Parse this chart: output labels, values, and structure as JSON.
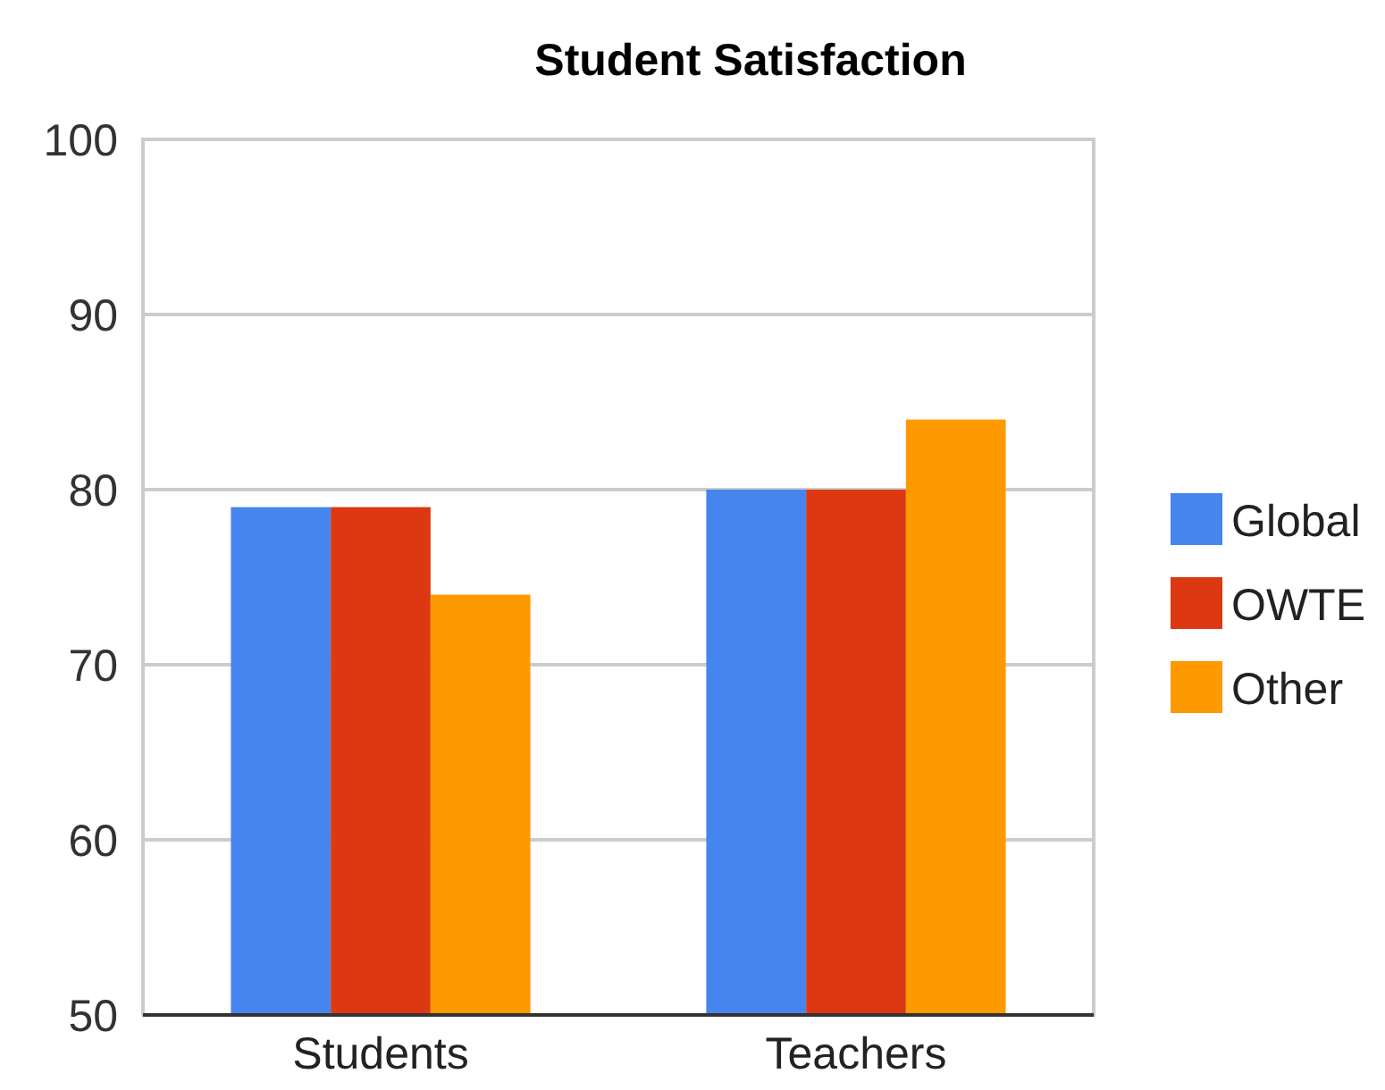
{
  "chart_data": {
    "type": "bar",
    "title": "Student Satisfaction",
    "categories": [
      "Students",
      "Teachers"
    ],
    "series": [
      {
        "name": "Global",
        "color": "#4684ee",
        "values": [
          79,
          80
        ]
      },
      {
        "name": "OWTE",
        "color": "#dc3912",
        "values": [
          79,
          80
        ]
      },
      {
        "name": "Other",
        "color": "#ff9900",
        "values": [
          74,
          84
        ]
      }
    ],
    "ylim": [
      50,
      100
    ],
    "yticks": [
      50,
      60,
      70,
      80,
      90,
      100
    ],
    "grid": "y",
    "legend": "right"
  }
}
